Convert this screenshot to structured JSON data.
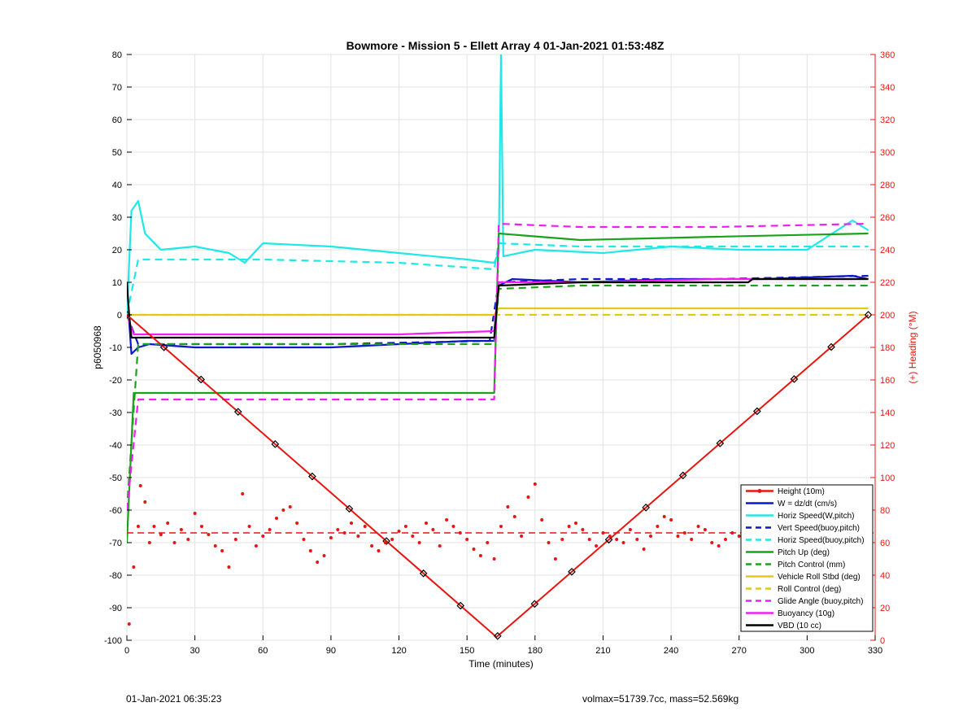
{
  "chart_data": {
    "type": "line",
    "title": "Bowmore - Mission 5 - Ellett Array 4 01-Jan-2021 01:53:48Z",
    "xlabel": "Time (minutes)",
    "ylabel": "p6050968",
    "ylabel_right": "(+) Heading (°M)",
    "xlim": [
      0,
      330
    ],
    "ylim": [
      -100,
      80
    ],
    "ylim_right": [
      0,
      360
    ],
    "xticks": [
      0,
      30,
      60,
      90,
      120,
      150,
      180,
      210,
      240,
      270,
      300,
      330
    ],
    "yticks": [
      -100,
      -90,
      -80,
      -70,
      -60,
      -50,
      -40,
      -30,
      -20,
      -10,
      0,
      10,
      20,
      30,
      40,
      50,
      60,
      70,
      80
    ],
    "yticks_right": [
      0,
      20,
      40,
      60,
      80,
      100,
      120,
      140,
      160,
      180,
      200,
      220,
      240,
      260,
      280,
      300,
      320,
      340,
      360
    ],
    "grid": true,
    "legend_position": "bottom-right",
    "colors": {
      "red": "#e8150f",
      "blue": "#0c18c8",
      "cyan": "#1ee8e8",
      "green": "#1aa31a",
      "yellow": "#e2c818",
      "magenta": "#f01ef0",
      "black": "#000000",
      "right_axis": "#e8150f"
    },
    "series": [
      {
        "name": "Height (10m)",
        "color": "#e8150f",
        "style": "solid-marker",
        "x": [
          0,
          163,
          327
        ],
        "y": [
          0,
          -99,
          0
        ]
      },
      {
        "name": "W = dz/dt (cm/s)",
        "color": "#0c18c8",
        "style": "solid",
        "x": [
          0,
          2,
          5,
          10,
          30,
          60,
          90,
          120,
          150,
          162,
          164,
          170,
          200,
          240,
          280,
          320,
          327
        ],
        "y": [
          8,
          -12,
          -10,
          -9,
          -10,
          -10,
          -10,
          -9,
          -8,
          -8,
          9,
          11,
          10,
          11,
          11,
          12,
          11
        ]
      },
      {
        "name": "Horiz Speed(W,pitch)",
        "color": "#1ee8e8",
        "style": "solid",
        "x": [
          0,
          2,
          5,
          8,
          15,
          30,
          45,
          52,
          60,
          90,
          120,
          150,
          162,
          164,
          165,
          166,
          180,
          210,
          240,
          270,
          300,
          320,
          327
        ],
        "y": [
          0,
          32,
          35,
          25,
          20,
          21,
          19,
          16,
          22,
          21,
          19,
          17,
          16,
          19,
          80,
          18,
          20,
          19,
          21,
          20,
          20,
          29,
          26
        ]
      },
      {
        "name": "Vert Speed(buoy,pitch)",
        "color": "#0c18c8",
        "style": "dashed",
        "x": [
          0,
          5,
          30,
          90,
          160,
          164,
          200,
          260,
          327
        ],
        "y": [
          0,
          -9,
          -9,
          -9,
          -8,
          10,
          11,
          11,
          12
        ]
      },
      {
        "name": "Horiz Speed(buoy,pitch)",
        "color": "#1ee8e8",
        "style": "dashed",
        "x": [
          0,
          5,
          60,
          120,
          162,
          164,
          200,
          260,
          327
        ],
        "y": [
          0,
          17,
          17,
          16,
          14,
          22,
          21,
          21,
          21
        ]
      },
      {
        "name": "Pitch Up (deg)",
        "color": "#1aa31a",
        "style": "solid",
        "x": [
          0,
          3,
          10,
          60,
          120,
          162,
          164,
          200,
          260,
          327
        ],
        "y": [
          -70,
          -24,
          -24,
          -24,
          -24,
          -24,
          25,
          23,
          24,
          25
        ]
      },
      {
        "name": "Pitch Control (mm)",
        "color": "#1aa31a",
        "style": "dashed",
        "x": [
          0,
          5,
          60,
          120,
          162,
          164,
          200,
          327
        ],
        "y": [
          -60,
          -9,
          -9,
          -9,
          -9,
          8,
          9,
          9
        ]
      },
      {
        "name": "Vehicle Roll Stbd (deg)",
        "color": "#e2c818",
        "style": "solid",
        "x": [
          0,
          10,
          60,
          120,
          162,
          164,
          200,
          260,
          327
        ],
        "y": [
          0,
          0,
          0,
          0,
          0,
          2,
          2,
          2,
          2
        ]
      },
      {
        "name": "Roll Control (deg)",
        "color": "#e2c818",
        "style": "dashed",
        "x": [
          0,
          10,
          60,
          120,
          162,
          164,
          200,
          260,
          327
        ],
        "y": [
          0,
          0,
          0,
          0,
          0,
          0,
          0,
          0,
          0
        ]
      },
      {
        "name": "Glide Angle (buoy,pitch)",
        "color": "#f01ef0",
        "style": "dashed",
        "x": [
          0,
          5,
          60,
          120,
          162,
          164,
          200,
          260,
          327
        ],
        "y": [
          -60,
          -26,
          -26,
          -26,
          -26,
          28,
          27,
          27,
          28
        ]
      },
      {
        "name": "Buoyancy (10g)",
        "color": "#f01ef0",
        "style": "solid",
        "x": [
          0,
          3,
          60,
          120,
          162,
          164,
          200,
          260,
          327
        ],
        "y": [
          0,
          -6,
          -6,
          -6,
          -5,
          10,
          10,
          11,
          11
        ]
      },
      {
        "name": "VBD (10 cc)",
        "color": "#000000",
        "style": "solid",
        "x": [
          0,
          1,
          2,
          60,
          162,
          164,
          200,
          274,
          276,
          327
        ],
        "y": [
          10,
          0,
          -7,
          -7,
          -7,
          9,
          10,
          10,
          11,
          11
        ]
      }
    ],
    "heading": {
      "axis": "right",
      "color": "#e8150f",
      "style": "scatter",
      "reference_line": 66,
      "x": [
        1,
        3,
        5,
        6,
        8,
        10,
        12,
        15,
        18,
        21,
        24,
        27,
        30,
        33,
        36,
        39,
        42,
        45,
        48,
        51,
        54,
        57,
        60,
        63,
        66,
        69,
        72,
        75,
        78,
        81,
        84,
        87,
        90,
        93,
        96,
        99,
        102,
        105,
        108,
        111,
        114,
        117,
        120,
        123,
        126,
        129,
        132,
        135,
        138,
        141,
        144,
        147,
        150,
        153,
        156,
        159,
        162,
        165,
        168,
        171,
        174,
        177,
        180,
        183,
        186,
        189,
        192,
        195,
        198,
        201,
        204,
        207,
        210,
        213,
        216,
        219,
        222,
        225,
        228,
        231,
        234,
        237,
        240,
        243,
        246,
        249,
        252,
        255,
        258,
        261,
        264,
        267,
        270,
        273,
        276,
        279,
        282,
        285,
        288,
        291,
        294,
        297,
        300,
        303,
        306,
        309,
        312,
        315,
        318,
        321,
        324,
        327
      ],
      "y": [
        10,
        45,
        70,
        95,
        85,
        60,
        70,
        65,
        72,
        60,
        68,
        62,
        78,
        70,
        65,
        58,
        55,
        45,
        62,
        90,
        70,
        58,
        64,
        68,
        75,
        80,
        82,
        72,
        62,
        55,
        48,
        52,
        63,
        68,
        66,
        72,
        64,
        70,
        58,
        55,
        60,
        62,
        67,
        70,
        64,
        60,
        72,
        68,
        58,
        74,
        70,
        66,
        62,
        56,
        52,
        60,
        50,
        70,
        82,
        76,
        64,
        88,
        96,
        74,
        60,
        50,
        62,
        70,
        72,
        68,
        62,
        58,
        66,
        64,
        62,
        60,
        68,
        62,
        56,
        64,
        70,
        76,
        74,
        64,
        66,
        62,
        70,
        68,
        60,
        58,
        62,
        66,
        64,
        60,
        56,
        54,
        52,
        66,
        66,
        72,
        76,
        70,
        60,
        64,
        68,
        56,
        54,
        64,
        70,
        74,
        76,
        68
      ]
    },
    "legend_entries": [
      {
        "label": "Height (10m)",
        "color": "#e8150f",
        "style": "solid-marker"
      },
      {
        "label": "W = dz/dt (cm/s)",
        "color": "#0c18c8",
        "style": "solid"
      },
      {
        "label": "Horiz Speed(W,pitch)",
        "color": "#1ee8e8",
        "style": "solid"
      },
      {
        "label": "Vert Speed(buoy,pitch)",
        "color": "#0c18c8",
        "style": "dashed"
      },
      {
        "label": "Horiz Speed(buoy,pitch)",
        "color": "#1ee8e8",
        "style": "dashed"
      },
      {
        "label": "Pitch Up (deg)",
        "color": "#1aa31a",
        "style": "solid"
      },
      {
        "label": "Pitch Control (mm)",
        "color": "#1aa31a",
        "style": "dashed"
      },
      {
        "label": "Vehicle Roll Stbd (deg)",
        "color": "#e2c818",
        "style": "solid"
      },
      {
        "label": "Roll Control (deg)",
        "color": "#e2c818",
        "style": "dashed"
      },
      {
        "label": "Glide Angle (buoy,pitch)",
        "color": "#f01ef0",
        "style": "dashed"
      },
      {
        "label": "Buoyancy (10g)",
        "color": "#f01ef0",
        "style": "solid"
      },
      {
        "label": "VBD (10 cc)",
        "color": "#000000",
        "style": "solid"
      }
    ]
  },
  "footer": {
    "left": "01-Jan-2021 06:35:23",
    "right": "volmax=51739.7cc, mass=52.569kg"
  }
}
